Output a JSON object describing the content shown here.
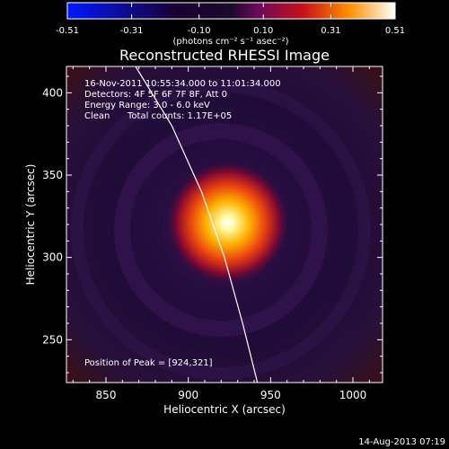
{
  "colorbar": {
    "tick_labels": [
      "-0.51",
      "-0.31",
      "-0.10",
      "0.10",
      "0.31",
      "0.51"
    ],
    "range": [
      -0.51,
      0.51
    ],
    "unit": "(photons cm⁻² s⁻¹ asec⁻²)"
  },
  "info": {
    "time_range": "16-Nov-2011 10:55:34.000 to 11:01:34.000",
    "detectors": "Detectors: 4F 5F 6F 7F 8F, Att 0",
    "energy_range": "Energy Range: 3.0 - 6.0 keV",
    "method": "Clean",
    "total_counts": "Total counts: 1.17E+05",
    "peak_position": "Position of Peak = [924,321]"
  },
  "footer": {
    "timestamp": "14-Aug-2013 07:19"
  },
  "chart_data": {
    "type": "heatmap",
    "title": "Reconstructed RHESSI Image",
    "xlabel": "Heliocentric X (arcsec)",
    "ylabel": "Heliocentric Y (arcsec)",
    "xlim": [
      826,
      1018
    ],
    "ylim": [
      224,
      416
    ],
    "xticks": [
      850,
      900,
      950,
      1000
    ],
    "yticks": [
      250,
      300,
      350,
      400
    ],
    "colormap": "IDL red-temperature (blue for negative)",
    "source_peak": {
      "x": 924,
      "y": 321,
      "value": 0.51
    },
    "limb_curve": {
      "points": [
        [
          868,
          416
        ],
        [
          890,
          380
        ],
        [
          908,
          340
        ],
        [
          922,
          300
        ],
        [
          933,
          260
        ],
        [
          942,
          224
        ]
      ]
    }
  }
}
